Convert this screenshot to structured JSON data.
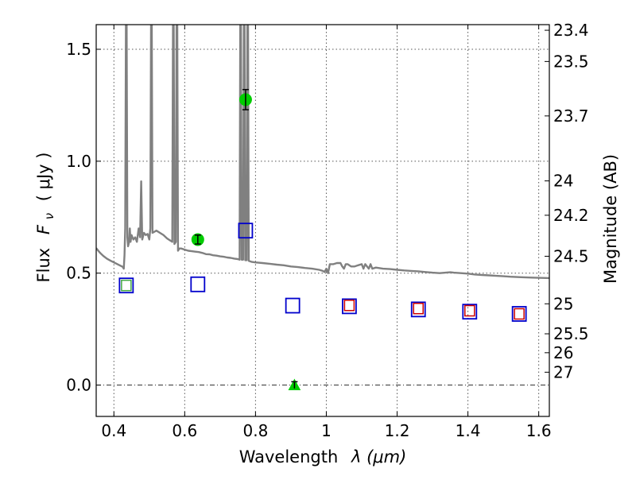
{
  "chart_data": {
    "type": "scatter",
    "title": "",
    "xlabel_text": "Wavelength",
    "xlabel_math": "λ (μm)",
    "ylabel_text": "Flux",
    "ylabel_math_symbol": "F",
    "ylabel_math_sub": "ν",
    "ylabel_unit": "( μJy )",
    "y2label": "Magnitude (AB)",
    "xlim": [
      0.35,
      1.63
    ],
    "ylim": [
      -0.14,
      1.61
    ],
    "grid": true,
    "x_ticks": [
      {
        "value": 0.4,
        "label": "0.4"
      },
      {
        "value": 0.6,
        "label": "0.6"
      },
      {
        "value": 0.8,
        "label": "0.8"
      },
      {
        "value": 1.0,
        "label": "1"
      },
      {
        "value": 1.2,
        "label": "1.2"
      },
      {
        "value": 1.4,
        "label": "1.4"
      },
      {
        "value": 1.6,
        "label": "1.6"
      }
    ],
    "y_ticks": [
      {
        "value": 0.0,
        "label": "0.0"
      },
      {
        "value": 0.5,
        "label": "0.5"
      },
      {
        "value": 1.0,
        "label": "1.0"
      },
      {
        "value": 1.5,
        "label": "1.5"
      }
    ],
    "y2_ticks": [
      {
        "value": 23.4,
        "label": "23.4"
      },
      {
        "value": 23.5,
        "label": "23.5"
      },
      {
        "value": 23.7,
        "label": "23.7"
      },
      {
        "value": 24,
        "label": "24"
      },
      {
        "value": 24.2,
        "label": "24.2"
      },
      {
        "value": 24.5,
        "label": "24.5"
      },
      {
        "value": 25,
        "label": "25"
      },
      {
        "value": 25.5,
        "label": "25.5"
      },
      {
        "value": 26,
        "label": "26"
      },
      {
        "value": 27,
        "label": "27"
      }
    ],
    "series": [
      {
        "kind": "sed-model-line",
        "color": "#808080",
        "points": [
          [
            0.35,
            0.612
          ],
          [
            0.36,
            0.592
          ],
          [
            0.37,
            0.577
          ],
          [
            0.38,
            0.565
          ],
          [
            0.39,
            0.556
          ],
          [
            0.4,
            0.548
          ],
          [
            0.41,
            0.54
          ],
          [
            0.42,
            0.532
          ],
          [
            0.425,
            0.528
          ],
          [
            0.428,
            0.52
          ],
          [
            0.43,
            0.58
          ],
          [
            0.432,
            0.7
          ],
          [
            0.434,
            1.61
          ],
          [
            0.436,
            1.61
          ],
          [
            0.438,
            0.66
          ],
          [
            0.44,
            0.62
          ],
          [
            0.443,
            0.64
          ],
          [
            0.445,
            0.7
          ],
          [
            0.447,
            0.64
          ],
          [
            0.45,
            0.67
          ],
          [
            0.455,
            0.65
          ],
          [
            0.46,
            0.66
          ],
          [
            0.465,
            0.64
          ],
          [
            0.47,
            0.7
          ],
          [
            0.474,
            0.66
          ],
          [
            0.477,
            0.91
          ],
          [
            0.48,
            0.65
          ],
          [
            0.485,
            0.68
          ],
          [
            0.49,
            0.67
          ],
          [
            0.495,
            0.675
          ],
          [
            0.5,
            0.65
          ],
          [
            0.503,
            0.7
          ],
          [
            0.505,
            1.61
          ],
          [
            0.507,
            1.61
          ],
          [
            0.509,
            0.68
          ],
          [
            0.52,
            0.69
          ],
          [
            0.53,
            0.68
          ],
          [
            0.54,
            0.67
          ],
          [
            0.55,
            0.655
          ],
          [
            0.56,
            0.645
          ],
          [
            0.565,
            0.64
          ],
          [
            0.567,
            1.61
          ],
          [
            0.569,
            1.61
          ],
          [
            0.571,
            0.63
          ],
          [
            0.575,
            0.64
          ],
          [
            0.577,
            1.61
          ],
          [
            0.579,
            1.61
          ],
          [
            0.581,
            0.6
          ],
          [
            0.585,
            0.61
          ],
          [
            0.59,
            0.61
          ],
          [
            0.6,
            0.605
          ],
          [
            0.61,
            0.6
          ],
          [
            0.62,
            0.598
          ],
          [
            0.63,
            0.596
          ],
          [
            0.64,
            0.594
          ],
          [
            0.65,
            0.59
          ],
          [
            0.66,
            0.585
          ],
          [
            0.67,
            0.584
          ],
          [
            0.68,
            0.58
          ],
          [
            0.69,
            0.578
          ],
          [
            0.7,
            0.575
          ],
          [
            0.71,
            0.573
          ],
          [
            0.72,
            0.57
          ],
          [
            0.73,
            0.568
          ],
          [
            0.74,
            0.565
          ],
          [
            0.75,
            0.563
          ],
          [
            0.755,
            0.56
          ],
          [
            0.757,
            1.61
          ],
          [
            0.759,
            1.61
          ],
          [
            0.761,
            0.56
          ],
          [
            0.765,
            0.56
          ],
          [
            0.767,
            1.61
          ],
          [
            0.769,
            1.61
          ],
          [
            0.771,
            0.558
          ],
          [
            0.775,
            0.558
          ],
          [
            0.777,
            1.61
          ],
          [
            0.779,
            1.61
          ],
          [
            0.781,
            0.555
          ],
          [
            0.79,
            0.55
          ],
          [
            0.8,
            0.548
          ],
          [
            0.82,
            0.545
          ],
          [
            0.84,
            0.542
          ],
          [
            0.86,
            0.538
          ],
          [
            0.88,
            0.535
          ],
          [
            0.9,
            0.53
          ],
          [
            0.92,
            0.527
          ],
          [
            0.94,
            0.523
          ],
          [
            0.96,
            0.52
          ],
          [
            0.98,
            0.515
          ],
          [
            0.99,
            0.51
          ],
          [
            0.995,
            0.505
          ],
          [
            1.0,
            0.52
          ],
          [
            1.005,
            0.5
          ],
          [
            1.01,
            0.54
          ],
          [
            1.02,
            0.54
          ],
          [
            1.03,
            0.545
          ],
          [
            1.04,
            0.545
          ],
          [
            1.045,
            0.53
          ],
          [
            1.05,
            0.52
          ],
          [
            1.055,
            0.54
          ],
          [
            1.06,
            0.54
          ],
          [
            1.07,
            0.53
          ],
          [
            1.08,
            0.53
          ],
          [
            1.09,
            0.535
          ],
          [
            1.1,
            0.54
          ],
          [
            1.105,
            0.52
          ],
          [
            1.11,
            0.54
          ],
          [
            1.12,
            0.52
          ],
          [
            1.125,
            0.54
          ],
          [
            1.13,
            0.52
          ],
          [
            1.14,
            0.525
          ],
          [
            1.16,
            0.52
          ],
          [
            1.18,
            0.518
          ],
          [
            1.2,
            0.515
          ],
          [
            1.22,
            0.512
          ],
          [
            1.24,
            0.51
          ],
          [
            1.26,
            0.508
          ],
          [
            1.28,
            0.505
          ],
          [
            1.3,
            0.502
          ],
          [
            1.32,
            0.5
          ],
          [
            1.35,
            0.504
          ],
          [
            1.36,
            0.502
          ],
          [
            1.38,
            0.5
          ],
          [
            1.4,
            0.498
          ],
          [
            1.42,
            0.494
          ],
          [
            1.44,
            0.492
          ],
          [
            1.46,
            0.49
          ],
          [
            1.48,
            0.488
          ],
          [
            1.5,
            0.486
          ],
          [
            1.52,
            0.484
          ],
          [
            1.55,
            0.482
          ],
          [
            1.58,
            0.48
          ],
          [
            1.6,
            0.479
          ],
          [
            1.63,
            0.478
          ]
        ]
      },
      {
        "kind": "observed-flux",
        "color": "#00cc00",
        "marker": "circle",
        "points": [
          {
            "x": 0.637,
            "y": 0.65,
            "err": 0.02
          },
          {
            "x": 0.772,
            "y": 1.275,
            "err": 0.045
          }
        ]
      },
      {
        "kind": "upper-limit",
        "color": "#00cc00",
        "marker": "triangle",
        "points": [
          {
            "x": 0.91,
            "y": 0.0,
            "err": 0.015
          }
        ]
      },
      {
        "kind": "model-synthetic-flux",
        "color": "#0000cc",
        "marker": "square",
        "points": [
          {
            "x": 0.435,
            "y": 0.445
          },
          {
            "x": 0.637,
            "y": 0.45
          },
          {
            "x": 0.772,
            "y": 0.69
          },
          {
            "x": 0.905,
            "y": 0.355
          },
          {
            "x": 1.065,
            "y": 0.352
          },
          {
            "x": 1.26,
            "y": 0.338
          },
          {
            "x": 1.405,
            "y": 0.328
          },
          {
            "x": 1.545,
            "y": 0.318
          }
        ]
      },
      {
        "kind": "inner-square-green",
        "color": "#44aa44",
        "marker": "square-small",
        "points": [
          {
            "x": 0.435,
            "y": 0.445
          }
        ]
      },
      {
        "kind": "inner-square-red",
        "color": "#cc0000",
        "marker": "square-small",
        "points": [
          {
            "x": 1.065,
            "y": 0.356
          },
          {
            "x": 1.26,
            "y": 0.342
          },
          {
            "x": 1.405,
            "y": 0.332
          },
          {
            "x": 1.545,
            "y": 0.318
          }
        ]
      }
    ]
  }
}
